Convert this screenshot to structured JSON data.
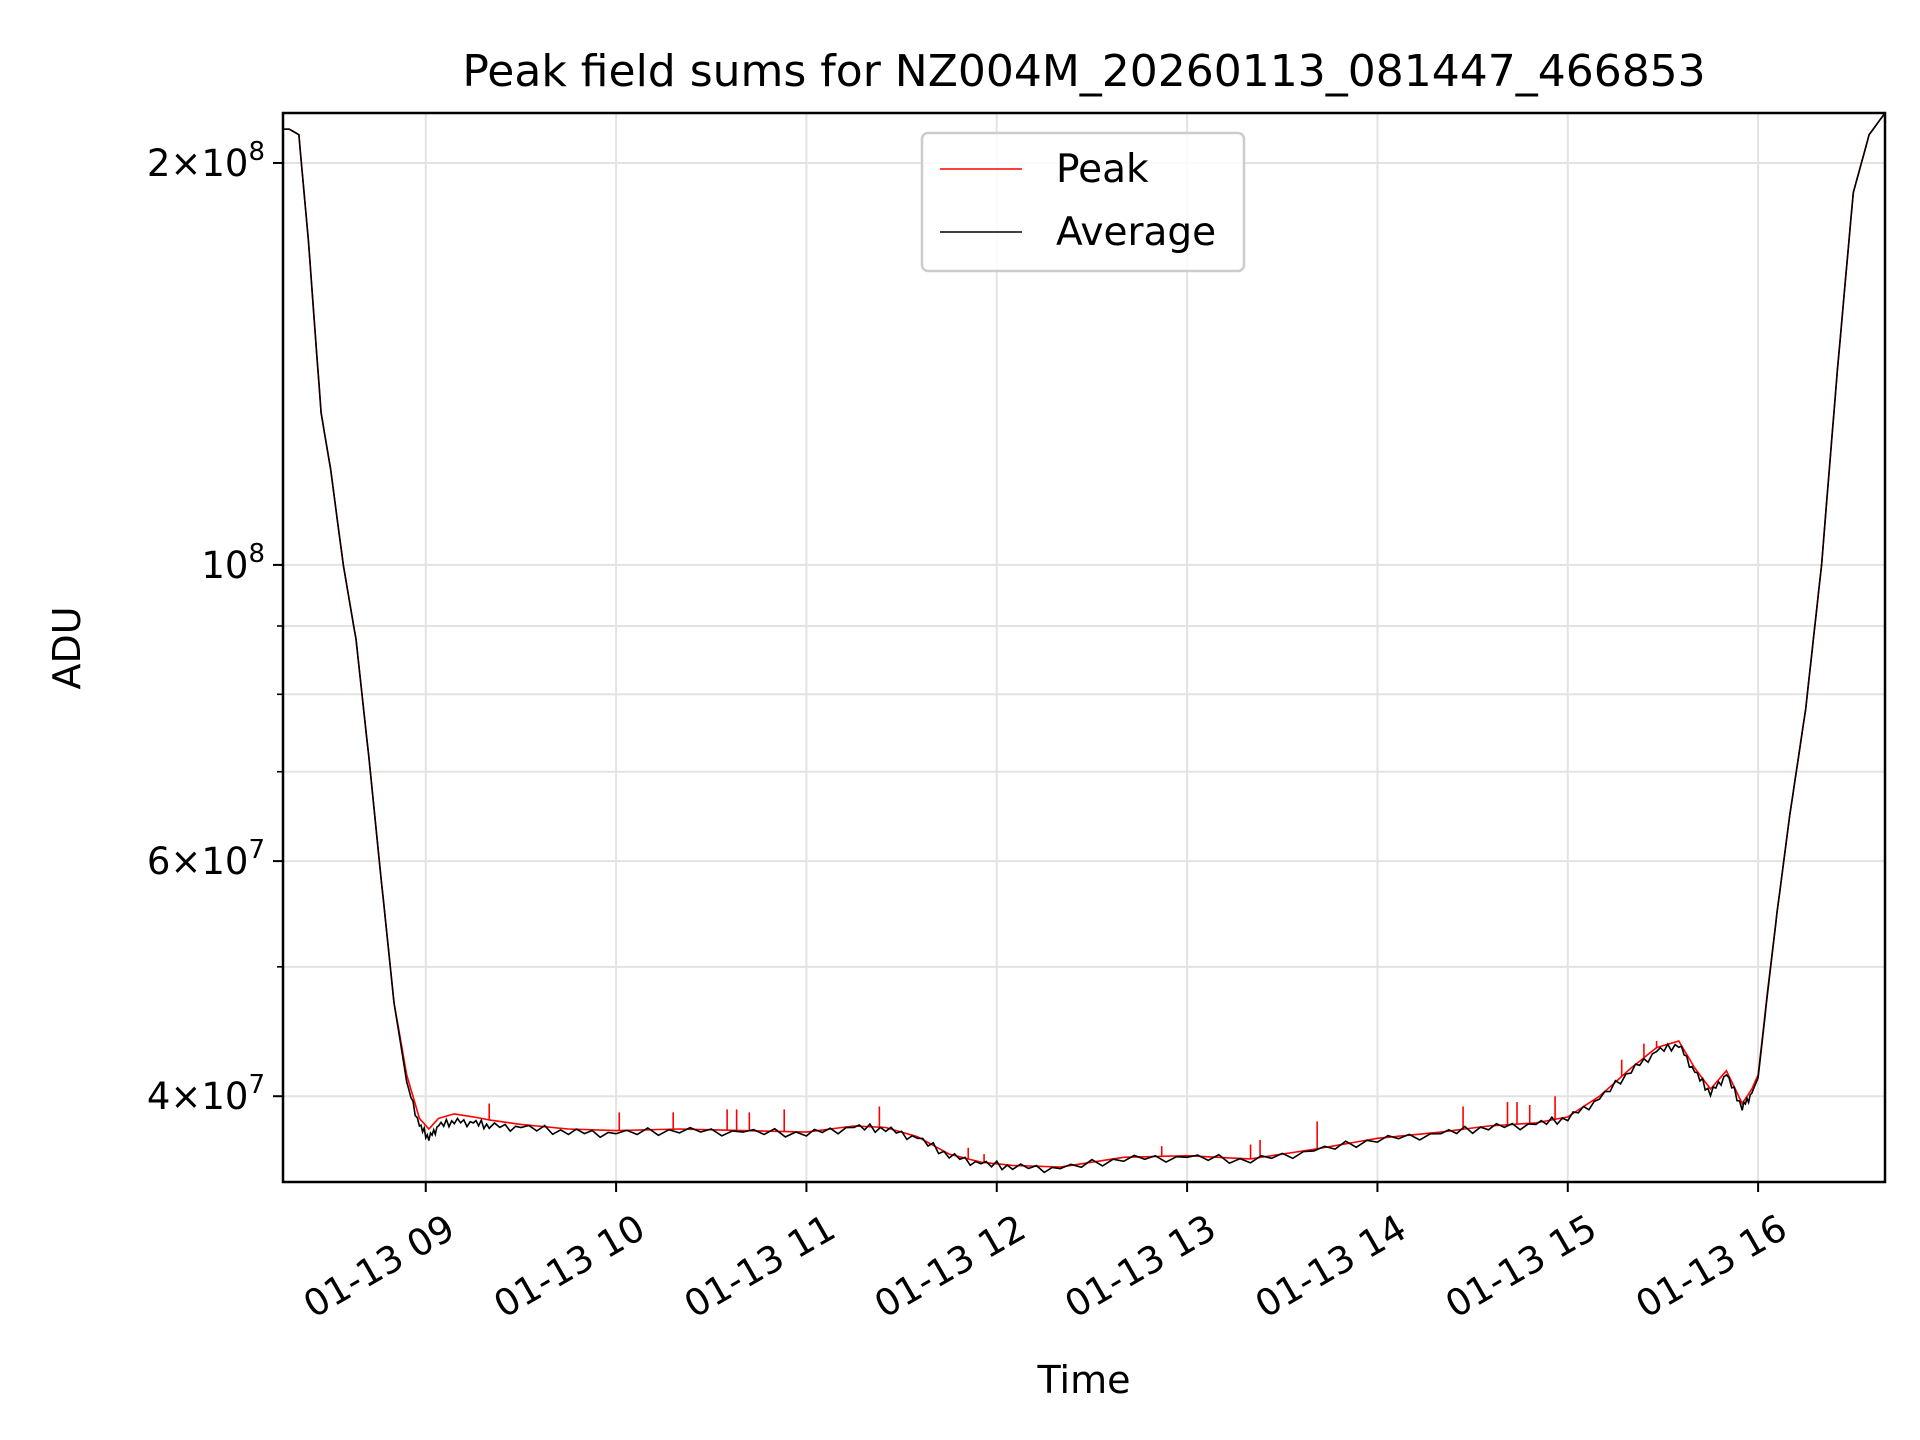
{
  "chart_data": {
    "type": "line",
    "title": "Peak field sums for NZ004M_20260113_081447_466853",
    "xlabel": "Time",
    "ylabel": "ADU",
    "y_scale": "log",
    "grid": true,
    "legend": {
      "placement": "upper center"
    },
    "x_range": [
      "2026-01-13 08:15",
      "2026-01-13 16:40"
    ],
    "ylim": [
      34500000,
      218000000
    ],
    "x_ticks": [
      "01-13 09",
      "01-13 10",
      "01-13 11",
      "01-13 12",
      "01-13 13",
      "01-13 14",
      "01-13 15",
      "01-13 16"
    ],
    "x_tick_times": [
      "2026-01-13 09:00",
      "2026-01-13 10:00",
      "2026-01-13 11:00",
      "2026-01-13 12:00",
      "2026-01-13 13:00",
      "2026-01-13 14:00",
      "2026-01-13 15:00",
      "2026-01-13 16:00"
    ],
    "y_ticks": [
      {
        "value": 40000000,
        "mantissa": "4",
        "exponent": "7"
      },
      {
        "value": 60000000,
        "mantissa": "6",
        "exponent": "7"
      },
      {
        "value": 100000000,
        "mantissa": "",
        "exponent": "8"
      },
      {
        "value": 200000000,
        "mantissa": "2",
        "exponent": "8"
      }
    ],
    "y_minor_ticks": [
      50000000,
      70000000,
      80000000,
      90000000
    ],
    "series": [
      {
        "name": "Peak",
        "color": "#ff0000",
        "x": [
          "2026-01-13 08:15",
          "2026-01-13 08:17",
          "2026-01-13 08:20",
          "2026-01-13 08:23",
          "2026-01-13 08:27",
          "2026-01-13 08:30",
          "2026-01-13 08:34",
          "2026-01-13 08:38",
          "2026-01-13 08:42",
          "2026-01-13 08:46",
          "2026-01-13 08:50",
          "2026-01-13 08:54",
          "2026-01-13 08:58",
          "2026-01-13 09:01",
          "2026-01-13 09:04",
          "2026-01-13 09:09",
          "2026-01-13 09:15",
          "2026-01-13 09:20",
          "2026-01-13 09:30",
          "2026-01-13 09:45",
          "2026-01-13 10:00",
          "2026-01-13 10:20",
          "2026-01-13 10:40",
          "2026-01-13 11:00",
          "2026-01-13 11:15",
          "2026-01-13 11:25",
          "2026-01-13 11:35",
          "2026-01-13 11:45",
          "2026-01-13 11:55",
          "2026-01-13 12:05",
          "2026-01-13 12:20",
          "2026-01-13 12:40",
          "2026-01-13 13:00",
          "2026-01-13 13:20",
          "2026-01-13 13:40",
          "2026-01-13 14:00",
          "2026-01-13 14:20",
          "2026-01-13 14:35",
          "2026-01-13 14:50",
          "2026-01-13 15:00",
          "2026-01-13 15:10",
          "2026-01-13 15:20",
          "2026-01-13 15:28",
          "2026-01-13 15:35",
          "2026-01-13 15:40",
          "2026-01-13 15:45",
          "2026-01-13 15:50",
          "2026-01-13 15:55",
          "2026-01-13 15:58",
          "2026-01-13 16:00",
          "2026-01-13 16:03",
          "2026-01-13 16:06",
          "2026-01-13 16:10",
          "2026-01-13 16:15",
          "2026-01-13 16:20",
          "2026-01-13 16:25",
          "2026-01-13 16:30",
          "2026-01-13 16:35",
          "2026-01-13 16:40"
        ],
        "y": [
          212000000,
          212000000,
          210000000,
          175000000,
          130000000,
          118000000,
          100000000,
          88000000,
          72000000,
          58000000,
          47000000,
          41500000,
          38500000,
          37800000,
          38500000,
          38800000,
          38600000,
          38400000,
          38100000,
          37800000,
          37700000,
          37800000,
          37700000,
          37600000,
          38000000,
          37900000,
          37300000,
          36200000,
          35700000,
          35500000,
          35400000,
          36000000,
          36100000,
          35900000,
          36500000,
          37200000,
          37600000,
          38000000,
          38200000,
          38600000,
          40000000,
          42000000,
          43500000,
          44000000,
          42000000,
          40500000,
          41800000,
          39500000,
          40500000,
          41500000,
          48000000,
          55000000,
          65000000,
          78000000,
          100000000,
          140000000,
          190000000,
          210000000,
          218000000
        ],
        "spikes": [
          {
            "x": "2026-01-13 09:20",
            "y": 39500000
          },
          {
            "x": "2026-01-13 10:01",
            "y": 38900000
          },
          {
            "x": "2026-01-13 10:18",
            "y": 38900000
          },
          {
            "x": "2026-01-13 10:35",
            "y": 39100000
          },
          {
            "x": "2026-01-13 10:38",
            "y": 39100000
          },
          {
            "x": "2026-01-13 10:42",
            "y": 38900000
          },
          {
            "x": "2026-01-13 10:53",
            "y": 39100000
          },
          {
            "x": "2026-01-13 11:23",
            "y": 39300000
          },
          {
            "x": "2026-01-13 11:51",
            "y": 36600000
          },
          {
            "x": "2026-01-13 11:56",
            "y": 36200000
          },
          {
            "x": "2026-01-13 12:52",
            "y": 36700000
          },
          {
            "x": "2026-01-13 13:20",
            "y": 36800000
          },
          {
            "x": "2026-01-13 13:23",
            "y": 37100000
          },
          {
            "x": "2026-01-13 13:41",
            "y": 38300000
          },
          {
            "x": "2026-01-13 14:27",
            "y": 39300000
          },
          {
            "x": "2026-01-13 14:41",
            "y": 39600000
          },
          {
            "x": "2026-01-13 14:44",
            "y": 39600000
          },
          {
            "x": "2026-01-13 14:48",
            "y": 39400000
          },
          {
            "x": "2026-01-13 14:56",
            "y": 40000000
          },
          {
            "x": "2026-01-13 15:17",
            "y": 42600000
          },
          {
            "x": "2026-01-13 15:24",
            "y": 43800000
          },
          {
            "x": "2026-01-13 15:28",
            "y": 44000000
          }
        ]
      },
      {
        "name": "Average",
        "color": "#000000",
        "x": [
          "2026-01-13 08:15",
          "2026-01-13 08:17",
          "2026-01-13 08:20",
          "2026-01-13 08:23",
          "2026-01-13 08:27",
          "2026-01-13 08:30",
          "2026-01-13 08:34",
          "2026-01-13 08:38",
          "2026-01-13 08:42",
          "2026-01-13 08:46",
          "2026-01-13 08:50",
          "2026-01-13 08:54",
          "2026-01-13 08:58",
          "2026-01-13 09:01",
          "2026-01-13 09:04",
          "2026-01-13 09:09",
          "2026-01-13 09:15",
          "2026-01-13 09:20",
          "2026-01-13 09:30",
          "2026-01-13 09:45",
          "2026-01-13 10:00",
          "2026-01-13 10:20",
          "2026-01-13 10:40",
          "2026-01-13 11:00",
          "2026-01-13 11:15",
          "2026-01-13 11:25",
          "2026-01-13 11:35",
          "2026-01-13 11:45",
          "2026-01-13 11:55",
          "2026-01-13 12:05",
          "2026-01-13 12:20",
          "2026-01-13 12:40",
          "2026-01-13 13:00",
          "2026-01-13 13:20",
          "2026-01-13 13:40",
          "2026-01-13 14:00",
          "2026-01-13 14:20",
          "2026-01-13 14:35",
          "2026-01-13 14:50",
          "2026-01-13 15:00",
          "2026-01-13 15:10",
          "2026-01-13 15:20",
          "2026-01-13 15:28",
          "2026-01-13 15:35",
          "2026-01-13 15:40",
          "2026-01-13 15:45",
          "2026-01-13 15:50",
          "2026-01-13 15:55",
          "2026-01-13 15:58",
          "2026-01-13 16:00",
          "2026-01-13 16:03",
          "2026-01-13 16:06",
          "2026-01-13 16:10",
          "2026-01-13 16:15",
          "2026-01-13 16:20",
          "2026-01-13 16:25",
          "2026-01-13 16:30",
          "2026-01-13 16:35",
          "2026-01-13 16:40"
        ],
        "y": [
          212000000,
          212000000,
          210000000,
          175000000,
          130000000,
          118000000,
          100000000,
          88000000,
          72000000,
          58000000,
          47000000,
          41000000,
          38000000,
          37200000,
          38000000,
          38300000,
          38200000,
          38000000,
          37900000,
          37600000,
          37500000,
          37700000,
          37600000,
          37500000,
          37900000,
          37800000,
          37200000,
          36100000,
          35600000,
          35400000,
          35300000,
          35900000,
          36000000,
          35800000,
          36400000,
          37100000,
          37500000,
          37900000,
          38100000,
          38500000,
          39800000,
          41800000,
          43200000,
          43700000,
          41700000,
          40200000,
          41500000,
          39200000,
          40200000,
          41300000,
          47800000,
          55000000,
          65000000,
          78000000,
          100000000,
          140000000,
          190000000,
          210000000,
          218000000
        ]
      }
    ]
  }
}
